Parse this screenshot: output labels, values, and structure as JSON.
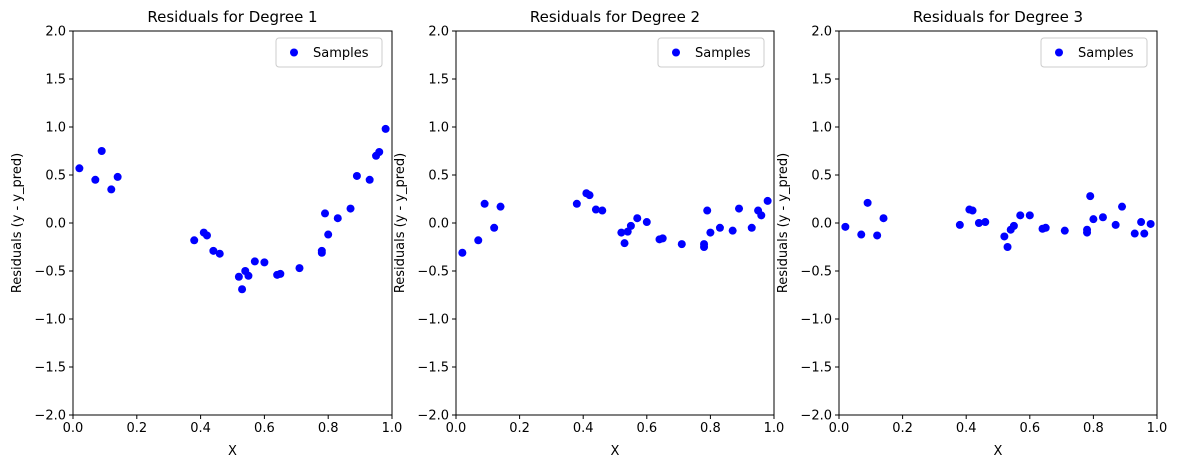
{
  "chart_data": [
    {
      "type": "scatter",
      "title": "Residuals for Degree 1",
      "xlabel": "X",
      "ylabel": "Residuals (y - y_pred)",
      "xlim": [
        0,
        1
      ],
      "ylim": [
        -2,
        2
      ],
      "xticks": [
        0,
        0.2,
        0.4,
        0.6,
        0.8,
        1.0
      ],
      "xtick_labels": [
        "0.0",
        "0.2",
        "0.4",
        "0.6",
        "0.8",
        "1.0"
      ],
      "yticks": [
        -2,
        -1.5,
        -1,
        -0.5,
        0,
        0.5,
        1,
        1.5,
        2
      ],
      "ytick_labels": [
        "−2.0",
        "−1.5",
        "−1.0",
        "−0.5",
        "0.0",
        "0.5",
        "1.0",
        "1.5",
        "2.0"
      ],
      "legend": "top-right",
      "grid": false,
      "series": [
        {
          "name": "Samples",
          "color": "#0000ff",
          "x": [
            0.02,
            0.07,
            0.09,
            0.12,
            0.14,
            0.38,
            0.41,
            0.42,
            0.44,
            0.46,
            0.52,
            0.53,
            0.54,
            0.55,
            0.57,
            0.6,
            0.64,
            0.65,
            0.71,
            0.78,
            0.78,
            0.79,
            0.8,
            0.83,
            0.87,
            0.89,
            0.93,
            0.95,
            0.96,
            0.98
          ],
          "y": [
            0.57,
            0.45,
            0.75,
            0.35,
            0.48,
            -0.18,
            -0.1,
            -0.13,
            -0.29,
            -0.32,
            -0.56,
            -0.69,
            -0.5,
            -0.55,
            -0.4,
            -0.41,
            -0.54,
            -0.53,
            -0.47,
            -0.29,
            -0.31,
            0.1,
            -0.12,
            0.05,
            0.15,
            0.49,
            0.45,
            0.7,
            0.74,
            0.98
          ]
        }
      ]
    },
    {
      "type": "scatter",
      "title": "Residuals for Degree 2",
      "xlabel": "X",
      "ylabel": "Residuals (y - y_pred)",
      "xlim": [
        0,
        1
      ],
      "ylim": [
        -2,
        2
      ],
      "xticks": [
        0,
        0.2,
        0.4,
        0.6,
        0.8,
        1.0
      ],
      "xtick_labels": [
        "0.0",
        "0.2",
        "0.4",
        "0.6",
        "0.8",
        "1.0"
      ],
      "yticks": [
        -2,
        -1.5,
        -1,
        -0.5,
        0,
        0.5,
        1,
        1.5,
        2
      ],
      "ytick_labels": [
        "−2.0",
        "−1.5",
        "−1.0",
        "−0.5",
        "0.0",
        "0.5",
        "1.0",
        "1.5",
        "2.0"
      ],
      "legend": "top-right",
      "grid": false,
      "series": [
        {
          "name": "Samples",
          "color": "#0000ff",
          "x": [
            0.02,
            0.07,
            0.09,
            0.12,
            0.14,
            0.38,
            0.41,
            0.42,
            0.44,
            0.46,
            0.52,
            0.53,
            0.54,
            0.55,
            0.57,
            0.6,
            0.64,
            0.65,
            0.71,
            0.78,
            0.78,
            0.79,
            0.8,
            0.83,
            0.87,
            0.89,
            0.93,
            0.95,
            0.96,
            0.98
          ],
          "y": [
            -0.31,
            -0.18,
            0.2,
            -0.05,
            0.17,
            0.2,
            0.31,
            0.29,
            0.14,
            0.13,
            -0.1,
            -0.21,
            -0.09,
            -0.03,
            0.05,
            0.01,
            -0.17,
            -0.16,
            -0.22,
            -0.22,
            -0.25,
            0.13,
            -0.1,
            -0.05,
            -0.08,
            0.15,
            -0.05,
            0.13,
            0.08,
            0.23
          ]
        }
      ]
    },
    {
      "type": "scatter",
      "title": "Residuals for Degree 3",
      "xlabel": "X",
      "ylabel": "Residuals (y - y_pred)",
      "xlim": [
        0,
        1
      ],
      "ylim": [
        -2,
        2
      ],
      "xticks": [
        0,
        0.2,
        0.4,
        0.6,
        0.8,
        1.0
      ],
      "xtick_labels": [
        "0.0",
        "0.2",
        "0.4",
        "0.6",
        "0.8",
        "1.0"
      ],
      "yticks": [
        -2,
        -1.5,
        -1,
        -0.5,
        0,
        0.5,
        1,
        1.5,
        2
      ],
      "ytick_labels": [
        "−2.0",
        "−1.5",
        "−1.0",
        "−0.5",
        "0.0",
        "0.5",
        "1.0",
        "1.5",
        "2.0"
      ],
      "legend": "top-right",
      "grid": false,
      "series": [
        {
          "name": "Samples",
          "color": "#0000ff",
          "x": [
            0.02,
            0.07,
            0.09,
            0.12,
            0.14,
            0.38,
            0.41,
            0.42,
            0.44,
            0.46,
            0.52,
            0.53,
            0.54,
            0.55,
            0.57,
            0.6,
            0.64,
            0.65,
            0.71,
            0.78,
            0.78,
            0.79,
            0.8,
            0.83,
            0.87,
            0.89,
            0.93,
            0.95,
            0.96,
            0.98
          ],
          "y": [
            -0.04,
            -0.12,
            0.21,
            -0.13,
            0.05,
            -0.02,
            0.14,
            0.13,
            0.0,
            0.01,
            -0.14,
            -0.25,
            -0.07,
            -0.03,
            0.08,
            0.08,
            -0.06,
            -0.05,
            -0.08,
            -0.07,
            -0.1,
            0.28,
            0.04,
            0.06,
            -0.02,
            0.17,
            -0.11,
            0.01,
            -0.11,
            -0.01
          ]
        }
      ]
    }
  ]
}
